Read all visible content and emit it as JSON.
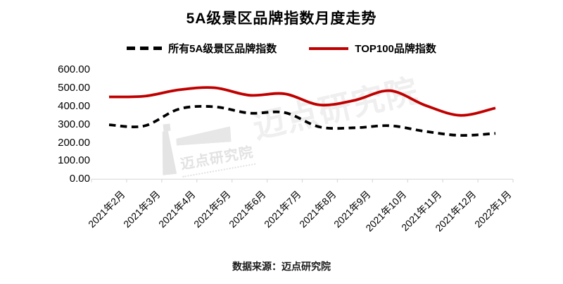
{
  "title": {
    "text": "5A级景区品牌指数月度走势"
  },
  "legend": {
    "items": [
      {
        "label": "所有5A级景区品牌指数",
        "style": "dashed",
        "color": "#000000"
      },
      {
        "label": "TOP100品牌指数",
        "style": "solid",
        "color": "#c00000"
      }
    ]
  },
  "footer": {
    "text": "数据来源：迈点研究院"
  },
  "watermark": {
    "small_text": "迈点研究院",
    "large_text": "迈点研究院"
  },
  "colors": {
    "series_all_5a": "#000000",
    "series_top100": "#c00000",
    "axis_line": "#d9d9d9",
    "text": "#000000"
  },
  "chart_data": {
    "type": "line",
    "title": "5A级景区品牌指数月度走势",
    "categories": [
      "2021年2月",
      "2021年3月",
      "2021年4月",
      "2021年5月",
      "2021年6月",
      "2021年7月",
      "2021年8月",
      "2021年9月",
      "2021年10月",
      "2021年11月",
      "2021年12月",
      "2022年1月"
    ],
    "series": [
      {
        "name": "所有5A级景区品牌指数",
        "color": "#000000",
        "dashed": true,
        "values": [
          298,
          292,
          385,
          397,
          362,
          365,
          286,
          282,
          293,
          262,
          240,
          251
        ]
      },
      {
        "name": "TOP100品牌指数",
        "color": "#c00000",
        "dashed": false,
        "values": [
          451,
          455,
          490,
          501,
          460,
          468,
          407,
          433,
          485,
          405,
          350,
          390
        ]
      }
    ],
    "xlabel": "",
    "ylabel": "",
    "ylim": [
      0,
      600
    ],
    "y_tick_labels": [
      "600.00",
      "500.00",
      "400.00",
      "300.00",
      "200.00",
      "100.00",
      "0.00"
    ],
    "grid": false,
    "legend_position": "top"
  }
}
